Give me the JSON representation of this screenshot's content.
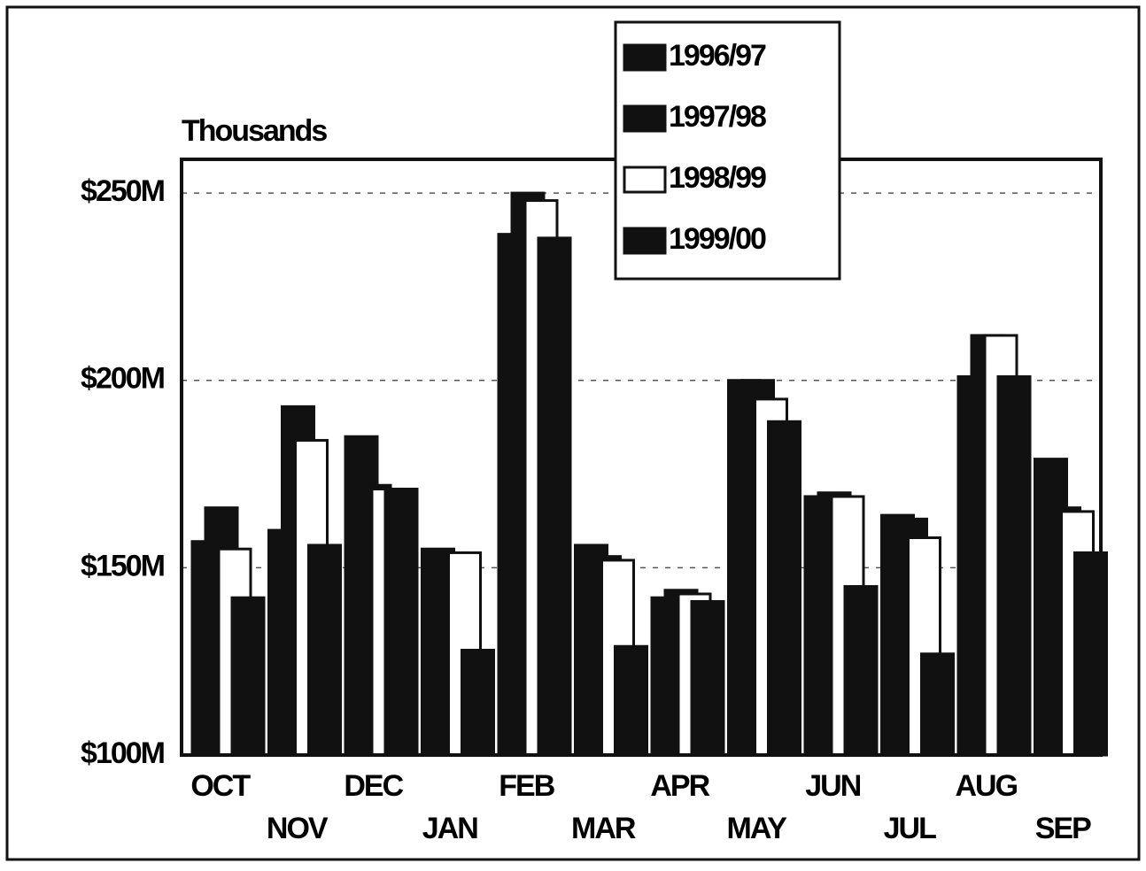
{
  "chart_data": {
    "type": "bar",
    "y_axis_label": "Thousands",
    "categories": [
      "OCT",
      "NOV",
      "DEC",
      "JAN",
      "FEB",
      "MAR",
      "APR",
      "MAY",
      "JUN",
      "JUL",
      "AUG",
      "SEP"
    ],
    "series": [
      {
        "name": "1996/97",
        "color": "#111111",
        "values": [
          157,
          160,
          185,
          155,
          239,
          156,
          142,
          200,
          169,
          164,
          201,
          179
        ]
      },
      {
        "name": "1997/98",
        "color": "#111111",
        "values": [
          166,
          193,
          172,
          154,
          250,
          153,
          144,
          200,
          170,
          163,
          212,
          166
        ]
      },
      {
        "name": "1998/99",
        "color": "#ffffff",
        "values": [
          155,
          184,
          171,
          154,
          248,
          152,
          143,
          195,
          169,
          158,
          212,
          165
        ]
      },
      {
        "name": "1999/00",
        "color": "#111111",
        "values": [
          142,
          156,
          171,
          128,
          238,
          129,
          141,
          189,
          145,
          127,
          201,
          154
        ]
      }
    ],
    "ylim": [
      100,
      259
    ],
    "yticks": [
      {
        "value": 100,
        "label": "$100M"
      },
      {
        "value": 150,
        "label": "$150M"
      },
      {
        "value": 200,
        "label": "$200M"
      },
      {
        "value": 250,
        "label": "$250M"
      }
    ],
    "grid": true,
    "legend": "top-right"
  }
}
